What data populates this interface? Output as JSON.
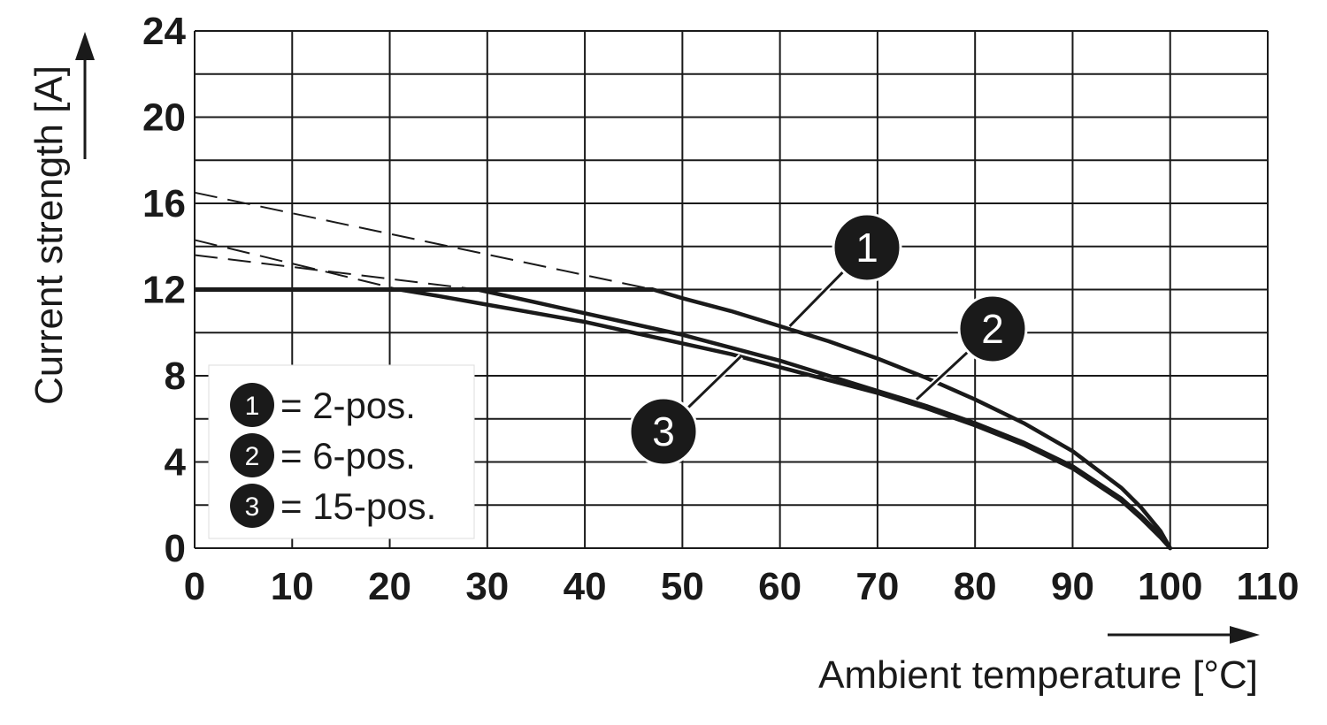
{
  "chart_data": {
    "type": "line",
    "xlabel": "Ambient temperature [°C]",
    "ylabel": "Current strength [A]",
    "xlim": [
      0,
      110
    ],
    "ylim": [
      0,
      24
    ],
    "x_ticks": [
      "0",
      "10",
      "20",
      "30",
      "40",
      "50",
      "60",
      "70",
      "80",
      "90",
      "100",
      "110"
    ],
    "y_ticks": [
      "0",
      "4",
      "8",
      "12",
      "16",
      "20",
      "24"
    ],
    "grid": true,
    "legend": {
      "position": "bottom-left",
      "entries": [
        {
          "id": "1",
          "text": "= 2-pos."
        },
        {
          "id": "2",
          "text": "= 6-pos."
        },
        {
          "id": "3",
          "text": "= 15-pos."
        }
      ]
    },
    "plateau": {
      "y": 12,
      "x": [
        0,
        47
      ]
    },
    "series": [
      {
        "name": "1",
        "style": "solid",
        "x": [
          47,
          50,
          55,
          60,
          65,
          70,
          75,
          80,
          85,
          90,
          95,
          97,
          99,
          100
        ],
        "y": [
          12,
          11.6,
          11.0,
          10.3,
          9.6,
          8.8,
          7.9,
          6.9,
          5.8,
          4.5,
          2.8,
          1.9,
          0.8,
          0
        ]
      },
      {
        "name": "2",
        "style": "solid",
        "x": [
          29,
          35,
          40,
          45,
          50,
          55,
          60,
          65,
          70,
          75,
          80,
          85,
          90,
          95,
          97,
          99,
          100
        ],
        "y": [
          12,
          11.4,
          10.9,
          10.4,
          9.9,
          9.3,
          8.7,
          8.0,
          7.3,
          6.6,
          5.8,
          4.9,
          3.8,
          2.3,
          1.5,
          0.6,
          0
        ]
      },
      {
        "name": "3",
        "style": "solid",
        "x": [
          21,
          25,
          30,
          35,
          40,
          45,
          50,
          55,
          60,
          65,
          70,
          75,
          80,
          85,
          90,
          95,
          97,
          99,
          100
        ],
        "y": [
          12,
          11.7,
          11.3,
          10.9,
          10.5,
          10.0,
          9.5,
          9.0,
          8.4,
          7.8,
          7.2,
          6.5,
          5.7,
          4.8,
          3.7,
          2.2,
          1.4,
          0.5,
          0
        ]
      }
    ],
    "extrapolations": [
      {
        "series": "1",
        "style": "dashed",
        "x": [
          0,
          47
        ],
        "y": [
          16.5,
          12
        ]
      },
      {
        "series": "2",
        "style": "dashed",
        "x": [
          0,
          29
        ],
        "y": [
          13.6,
          12
        ]
      },
      {
        "series": "3",
        "style": "dashed",
        "x": [
          0,
          21
        ],
        "y": [
          14.3,
          12
        ]
      }
    ],
    "callouts": [
      {
        "label": "1",
        "anchor_x": 61,
        "anchor_y": 10.3
      },
      {
        "label": "2",
        "anchor_x": 74,
        "anchor_y": 6.9
      },
      {
        "label": "3",
        "anchor_x": 56,
        "anchor_y": 8.9
      }
    ],
    "colors": {
      "ink": "#1a1a1a",
      "background": "#ffffff",
      "badge_fill": "#1a1a1a",
      "badge_text": "#ffffff"
    }
  }
}
